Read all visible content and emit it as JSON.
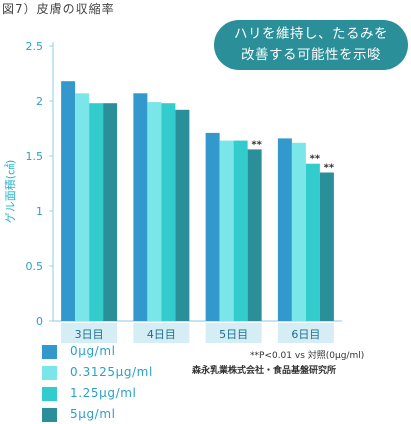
{
  "figure_title": "図7）皮膚の収縮率",
  "callout": {
    "line1": "ハリを維持し、たるみを",
    "line2": "改善する可能性を示唆"
  },
  "note": "**P<0.01 vs 対照(0μg/ml)",
  "company": "森永乳業株式会社・食品基盤研究所",
  "chart_data": {
    "type": "bar",
    "ylabel": "ゲル面積(㎠)",
    "ylim": [
      0,
      2.5
    ],
    "yticks": [
      "0",
      "0.5",
      "1",
      "1.5",
      "2",
      "2.5"
    ],
    "categories": [
      "3日目",
      "4日目",
      "5日目",
      "6日目"
    ],
    "series": [
      {
        "name": "0μg/ml",
        "color": "#3399cc",
        "values": [
          2.18,
          2.07,
          1.71,
          1.66
        ]
      },
      {
        "name": "0.3125μg/ml",
        "color": "#7ae6ea",
        "values": [
          2.07,
          1.99,
          1.64,
          1.62
        ]
      },
      {
        "name": "1.25μg/ml",
        "color": "#33cccc",
        "values": [
          1.98,
          1.98,
          1.64,
          1.43
        ]
      },
      {
        "name": "5μg/ml",
        "color": "#2a8f99",
        "values": [
          1.98,
          1.92,
          1.56,
          1.35
        ]
      }
    ],
    "annotations": [
      {
        "category": 2,
        "series": 3,
        "text": "**"
      },
      {
        "category": 3,
        "series": 2,
        "text": "**"
      },
      {
        "category": 3,
        "series": 3,
        "text": "**"
      }
    ],
    "grid": false,
    "legend_position": "bottom-left"
  }
}
